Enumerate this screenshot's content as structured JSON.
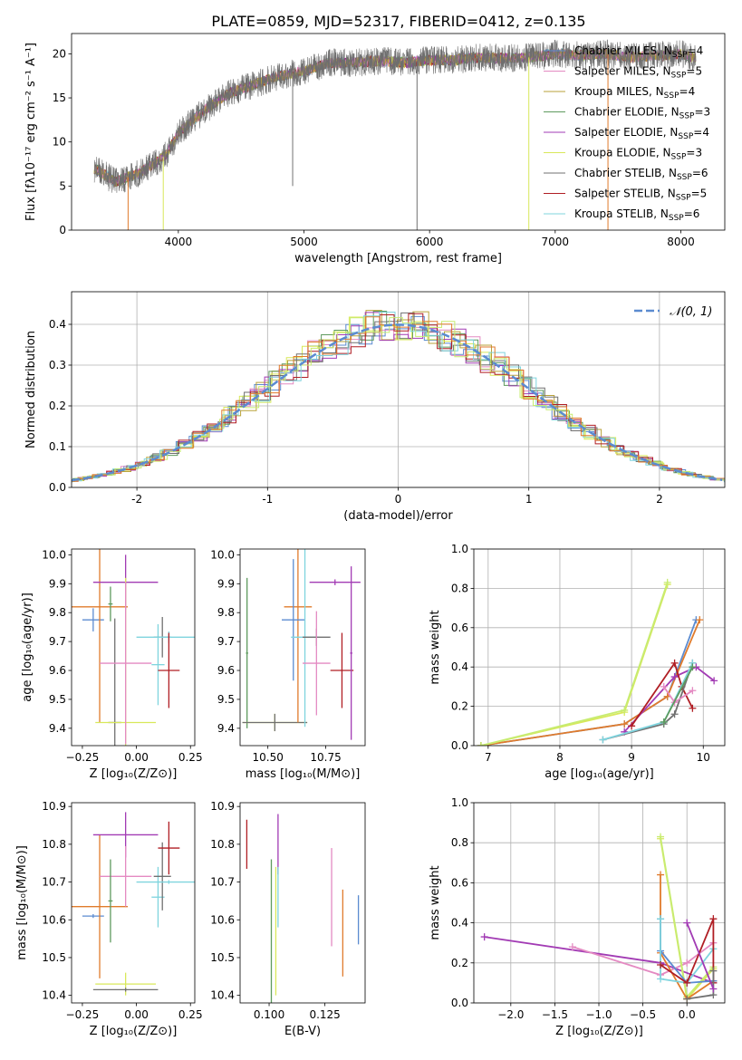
{
  "figure_title": "PLATE=0859, MJD=52317, FIBERID=0412, z=0.135",
  "colors": [
    "#5b8bd0",
    "#e07b2c",
    "#b9a23a",
    "#5e9a5e",
    "#a23bb4",
    "#d8e85a",
    "#707070",
    "#b01e24",
    "#7fd4de",
    "#e48ac2",
    "#c7ec71"
  ],
  "legend": [
    {
      "text": "Chabrier MILES, N",
      "sub": "SSP",
      "tail": "=4",
      "color": "#5b8bd0"
    },
    {
      "text": "Salpeter MILES, N",
      "sub": "SSP",
      "tail": "=5",
      "color": "#e48ac2"
    },
    {
      "text": "Kroupa MILES, N",
      "sub": "SSP",
      "tail": "=4",
      "color": "#b9a23a"
    },
    {
      "text": "Chabrier ELODIE, N",
      "sub": "SSP",
      "tail": "=3",
      "color": "#5e9a5e"
    },
    {
      "text": "Salpeter ELODIE, N",
      "sub": "SSP",
      "tail": "=4",
      "color": "#a23bb4"
    },
    {
      "text": "Kroupa ELODIE, N",
      "sub": "SSP",
      "tail": "=3",
      "color": "#d8e85a"
    },
    {
      "text": "Chabrier STELIB, N",
      "sub": "SSP",
      "tail": "=6",
      "color": "#707070"
    },
    {
      "text": "Salpeter STELIB, N",
      "sub": "SSP",
      "tail": "=5",
      "color": "#b01e24"
    },
    {
      "text": "Kroupa STELIB, N",
      "sub": "SSP",
      "tail": "=6",
      "color": "#7fd4de"
    }
  ],
  "chart_data": [
    {
      "type": "line",
      "xlabel": "wavelength [Angstrom, rest frame]",
      "ylabel": "Flux [fλ10⁻¹⁷ erg cm⁻² s⁻¹ A⁻¹]",
      "xlim": [
        3150,
        8350
      ],
      "ylim": [
        0,
        22.3
      ],
      "xticks": [
        4000,
        5000,
        6000,
        7000,
        8000
      ],
      "yticks": [
        0,
        5,
        10,
        15,
        20
      ],
      "spectrum_shape": {
        "x": [
          3330,
          3500,
          3700,
          3900,
          4000,
          4200,
          4400,
          4600,
          4800,
          5000,
          5200,
          5400,
          5600,
          5800,
          6000,
          6200,
          6400,
          6600,
          6800,
          7000,
          7200,
          7400,
          7600,
          7800,
          8000,
          8100
        ],
        "y": [
          7.0,
          5.5,
          6.5,
          8.5,
          11.0,
          13.5,
          15.5,
          16.5,
          17.5,
          18.0,
          19.0,
          19.0,
          19.2,
          19.0,
          19.3,
          19.3,
          19.6,
          19.5,
          19.6,
          20.0,
          19.8,
          20.0,
          19.6,
          19.8,
          20.0,
          19.5
        ]
      }
    },
    {
      "type": "histogram",
      "xlabel": "(data-model)/error",
      "ylabel": "Normed distribution",
      "xlim": [
        -2.5,
        2.5
      ],
      "ylim": [
        0,
        0.48
      ],
      "xticks": [
        -2,
        -1,
        0,
        1,
        2
      ],
      "yticks": [
        0.0,
        0.1,
        0.2,
        0.3,
        0.4
      ],
      "legend": "𝒩(0, 1)",
      "reference_curve": "gaussian mean 0 sigma 1"
    },
    {
      "type": "scatter",
      "xlabel": "Z [log₁₀(Z/Z⊙)]",
      "ylabel": "age  [log₁₀(age/yr)]",
      "xlim": [
        -0.3,
        0.27
      ],
      "ylim": [
        9.34,
        10.02
      ],
      "xticks": [
        -0.25,
        0.0,
        0.25
      ],
      "xticklabels": [
        "−0.25",
        "0.00",
        "0.25"
      ],
      "yticks": [
        9.4,
        9.5,
        9.6,
        9.7,
        9.8,
        9.9,
        10.0
      ],
      "points": [
        {
          "x": -0.2,
          "xerr": 0.05,
          "y": 9.775,
          "yerr": 0.04,
          "c": "#5b8bd0"
        },
        {
          "x": -0.17,
          "xerr": 0.13,
          "y": 9.82,
          "yerr": 0.4,
          "c": "#e07b2c"
        },
        {
          "x": -0.12,
          "xerr": 0.01,
          "y": 9.83,
          "yerr": 0.06,
          "c": "#5e9a5e"
        },
        {
          "x": -0.05,
          "xerr": 0.15,
          "y": 9.905,
          "yerr": 0.095,
          "c": "#a23bb4"
        },
        {
          "x": -0.1,
          "xerr": 0.03,
          "y": 9.42,
          "yerr": 0.36,
          "c": "#707070"
        },
        {
          "x": -0.05,
          "xerr": 0.14,
          "y": 9.42,
          "yerr": 0.5,
          "c": "#d8e85a"
        },
        {
          "x": -0.05,
          "xerr": 0.12,
          "y": 9.625,
          "yerr": 0.28,
          "c": "#e48ac2"
        },
        {
          "x": 0.1,
          "xerr": 0.03,
          "y": 9.62,
          "yerr": 0.14,
          "c": "#7fd4de"
        },
        {
          "x": 0.12,
          "xerr": 0.04,
          "y": 9.715,
          "yerr": 0.07,
          "c": "#707070"
        },
        {
          "x": 0.15,
          "xerr": 0.15,
          "y": 9.715,
          "yerr": 0.02,
          "c": "#7fd4de"
        },
        {
          "x": 0.15,
          "xerr": 0.05,
          "y": 9.6,
          "yerr": 0.13,
          "c": "#b01e24"
        }
      ]
    },
    {
      "type": "scatter",
      "xlabel": "mass [log₁₀(M/M⊙)]",
      "ylabel": "",
      "xlim": [
        10.38,
        10.92
      ],
      "ylim": [
        9.34,
        10.02
      ],
      "xticks": [
        10.5,
        10.75
      ],
      "xticklabels": [
        "10.50",
        "10.75"
      ],
      "yticks": [
        9.4,
        9.5,
        9.6,
        9.7,
        9.8,
        9.9,
        10.0
      ],
      "points": [
        {
          "x": 10.41,
          "xerr": 0.005,
          "y": 9.66,
          "yerr": 0.26,
          "c": "#5e9a5e"
        },
        {
          "x": 10.53,
          "xerr": 0.14,
          "y": 9.42,
          "yerr": 0.03,
          "c": "#d8e85a"
        },
        {
          "x": 10.53,
          "xerr": 0.14,
          "y": 9.42,
          "yerr": 0.03,
          "c": "#707070"
        },
        {
          "x": 10.63,
          "xerr": 0.06,
          "y": 9.82,
          "yerr": 0.4,
          "c": "#e07b2c"
        },
        {
          "x": 10.61,
          "xerr": 0.05,
          "y": 9.775,
          "yerr": 0.21,
          "c": "#5b8bd0"
        },
        {
          "x": 10.66,
          "xerr": 0.06,
          "y": 9.715,
          "yerr": 0.31,
          "c": "#7fd4de"
        },
        {
          "x": 10.71,
          "xerr": 0.06,
          "y": 9.715,
          "yerr": 0.03,
          "c": "#707070"
        },
        {
          "x": 10.71,
          "xerr": 0.06,
          "y": 9.625,
          "yerr": 0.18,
          "c": "#e48ac2"
        },
        {
          "x": 10.79,
          "xerr": 0.11,
          "y": 9.905,
          "yerr": 0.01,
          "c": "#a23bb4"
        },
        {
          "x": 10.82,
          "xerr": 0.05,
          "y": 9.6,
          "yerr": 0.13,
          "c": "#b01e24"
        },
        {
          "x": 10.86,
          "xerr": 0.005,
          "y": 9.66,
          "yerr": 0.3,
          "c": "#a23bb4"
        }
      ]
    },
    {
      "type": "line",
      "xlabel": "age  [log₁₀(age/yr)]",
      "ylabel": "mass weight",
      "xlim": [
        6.8,
        10.3
      ],
      "ylim": [
        0,
        1
      ],
      "xticks": [
        7,
        8,
        9,
        10
      ],
      "yticks": [
        0.0,
        0.2,
        0.4,
        0.6,
        0.8,
        1.0
      ],
      "series": [
        {
          "c": "#5b8bd0",
          "x": [
            6.9,
            8.9,
            9.5,
            9.9
          ],
          "y": [
            0.0,
            0.11,
            0.25,
            0.64
          ]
        },
        {
          "c": "#e07b2c",
          "x": [
            6.9,
            8.9,
            9.5,
            9.95
          ],
          "y": [
            0.0,
            0.11,
            0.25,
            0.64
          ]
        },
        {
          "c": "#d8e85a",
          "x": [
            6.9,
            8.9,
            9.5
          ],
          "y": [
            0.0,
            0.17,
            0.82
          ]
        },
        {
          "c": "#c7ec71",
          "x": [
            6.9,
            8.9,
            9.5
          ],
          "y": [
            0.0,
            0.18,
            0.83
          ]
        },
        {
          "c": "#a23bb4",
          "x": [
            8.9,
            9.6,
            9.9,
            10.15
          ],
          "y": [
            0.07,
            0.35,
            0.4,
            0.33
          ]
        },
        {
          "c": "#b01e24",
          "x": [
            9.0,
            9.6,
            9.7,
            9.85
          ],
          "y": [
            0.1,
            0.42,
            0.3,
            0.19
          ]
        },
        {
          "c": "#707070",
          "x": [
            8.6,
            9.45,
            9.6,
            9.85
          ],
          "y": [
            0.03,
            0.11,
            0.16,
            0.42
          ]
        },
        {
          "c": "#7fd4de",
          "x": [
            8.6,
            9.45,
            9.85
          ],
          "y": [
            0.03,
            0.12,
            0.42
          ]
        },
        {
          "c": "#e48ac2",
          "x": [
            9.45,
            9.6,
            9.85
          ],
          "y": [
            0.3,
            0.22,
            0.28
          ]
        },
        {
          "c": "#5e9a5e",
          "x": [
            9.45,
            9.85
          ],
          "y": [
            0.12,
            0.4
          ]
        }
      ]
    },
    {
      "type": "scatter",
      "xlabel": "Z [log₁₀(Z/Z⊙)]",
      "ylabel": "mass [log₁₀(M/M⊙)]",
      "xlim": [
        -0.3,
        0.27
      ],
      "ylim": [
        10.38,
        10.91
      ],
      "xticks": [
        -0.25,
        0.0,
        0.25
      ],
      "xticklabels": [
        "−0.25",
        "0.00",
        "0.25"
      ],
      "yticks": [
        10.4,
        10.5,
        10.6,
        10.7,
        10.8,
        10.9
      ],
      "points": [
        {
          "x": -0.2,
          "xerr": 0.05,
          "y": 10.61,
          "yerr": 0.005,
          "c": "#5b8bd0"
        },
        {
          "x": -0.17,
          "xerr": 0.13,
          "y": 10.635,
          "yerr": 0.19,
          "c": "#e07b2c"
        },
        {
          "x": -0.05,
          "xerr": 0.15,
          "y": 10.825,
          "yerr": 0.06,
          "c": "#a23bb4"
        },
        {
          "x": -0.05,
          "xerr": 0.12,
          "y": 10.715,
          "yerr": 0.08,
          "c": "#e48ac2"
        },
        {
          "x": -0.12,
          "xerr": 0.01,
          "y": 10.65,
          "yerr": 0.11,
          "c": "#5e9a5e"
        },
        {
          "x": -0.05,
          "xerr": 0.14,
          "y": 10.43,
          "yerr": 0.03,
          "c": "#d8e85a"
        },
        {
          "x": -0.05,
          "xerr": 0.15,
          "y": 10.415,
          "yerr": 0.005,
          "c": "#707070"
        },
        {
          "x": 0.1,
          "xerr": 0.03,
          "y": 10.66,
          "yerr": 0.08,
          "c": "#7fd4de"
        },
        {
          "x": 0.12,
          "xerr": 0.04,
          "y": 10.715,
          "yerr": 0.09,
          "c": "#707070"
        },
        {
          "x": 0.15,
          "xerr": 0.15,
          "y": 10.7,
          "yerr": 0.005,
          "c": "#7fd4de"
        },
        {
          "x": 0.15,
          "xerr": 0.05,
          "y": 10.79,
          "yerr": 0.07,
          "c": "#b01e24"
        }
      ]
    },
    {
      "type": "scatter",
      "xlabel": "E(B-V)",
      "ylabel": "",
      "xlim": [
        0.087,
        0.143
      ],
      "ylim": [
        10.38,
        10.91
      ],
      "xticks": [
        0.1,
        0.125
      ],
      "xticklabels": [
        "0.100",
        "0.125"
      ],
      "yticks": [
        10.4,
        10.5,
        10.6,
        10.7,
        10.8,
        10.9
      ],
      "points": [
        {
          "x": 0.09,
          "y": 10.8,
          "yerr": 0.065,
          "c": "#b01e24"
        },
        {
          "x": 0.101,
          "y": 10.57,
          "yerr": 0.19,
          "c": "#5e9a5e"
        },
        {
          "x": 0.103,
          "y": 10.57,
          "yerr": 0.17,
          "c": "#d8e85a"
        },
        {
          "x": 0.104,
          "y": 10.8,
          "yerr": 0.08,
          "c": "#a23bb4"
        },
        {
          "x": 0.104,
          "y": 10.66,
          "yerr": 0.08,
          "c": "#7fd4de"
        },
        {
          "x": 0.128,
          "y": 10.66,
          "yerr": 0.13,
          "c": "#e48ac2"
        },
        {
          "x": 0.133,
          "y": 10.565,
          "yerr": 0.115,
          "c": "#e07b2c"
        },
        {
          "x": 0.14,
          "y": 10.6,
          "yerr": 0.065,
          "c": "#5b8bd0"
        }
      ]
    },
    {
      "type": "line",
      "xlabel": "Z [log₁₀(Z/Z⊙)]",
      "ylabel": "mass weight",
      "xlim": [
        -2.42,
        0.43
      ],
      "ylim": [
        0,
        1
      ],
      "xticks": [
        -2.0,
        -1.5,
        -1.0,
        -0.5,
        0.0
      ],
      "xticklabels": [
        "−2.0",
        "−1.5",
        "−1.0",
        "−0.5",
        "0.0"
      ],
      "yticks": [
        0.0,
        0.2,
        0.4,
        0.6,
        0.8,
        1.0
      ],
      "series": [
        {
          "c": "#a23bb4",
          "x": [
            -2.3,
            -0.3,
            0.3
          ],
          "y": [
            0.33,
            0.2,
            0.1
          ]
        },
        {
          "c": "#e48ac2",
          "x": [
            -1.3,
            -0.3,
            0.0,
            0.3
          ],
          "y": [
            0.28,
            0.14,
            0.2,
            0.3
          ]
        },
        {
          "c": "#d8e85a",
          "x": [
            -0.3,
            0.0,
            0.3
          ],
          "y": [
            0.82,
            0.02,
            0.17
          ]
        },
        {
          "c": "#c7ec71",
          "x": [
            -0.3,
            0.0,
            0.3
          ],
          "y": [
            0.83,
            0.03,
            0.18
          ]
        },
        {
          "c": "#e07b2c",
          "x": [
            -0.3,
            -0.3,
            0.0,
            0.3
          ],
          "y": [
            0.64,
            0.25,
            0.02,
            0.11
          ]
        },
        {
          "c": "#5b8bd0",
          "x": [
            -0.3,
            -0.3,
            0.0,
            0.3
          ],
          "y": [
            0.42,
            0.26,
            0.1,
            0.11
          ]
        },
        {
          "c": "#7fd4de",
          "x": [
            -0.3,
            -0.3,
            0.0,
            0.3
          ],
          "y": [
            0.42,
            0.12,
            0.1,
            0.27
          ]
        },
        {
          "c": "#b01e24",
          "x": [
            -0.3,
            0.0,
            0.3,
            0.3
          ],
          "y": [
            0.19,
            0.1,
            0.42,
            0.1
          ]
        },
        {
          "c": "#707070",
          "x": [
            0.0,
            0.3,
            0.3
          ],
          "y": [
            0.02,
            0.04,
            0.16
          ]
        },
        {
          "c": "#a23bb4",
          "x": [
            0.0,
            0.3
          ],
          "y": [
            0.4,
            0.07
          ]
        }
      ]
    }
  ]
}
